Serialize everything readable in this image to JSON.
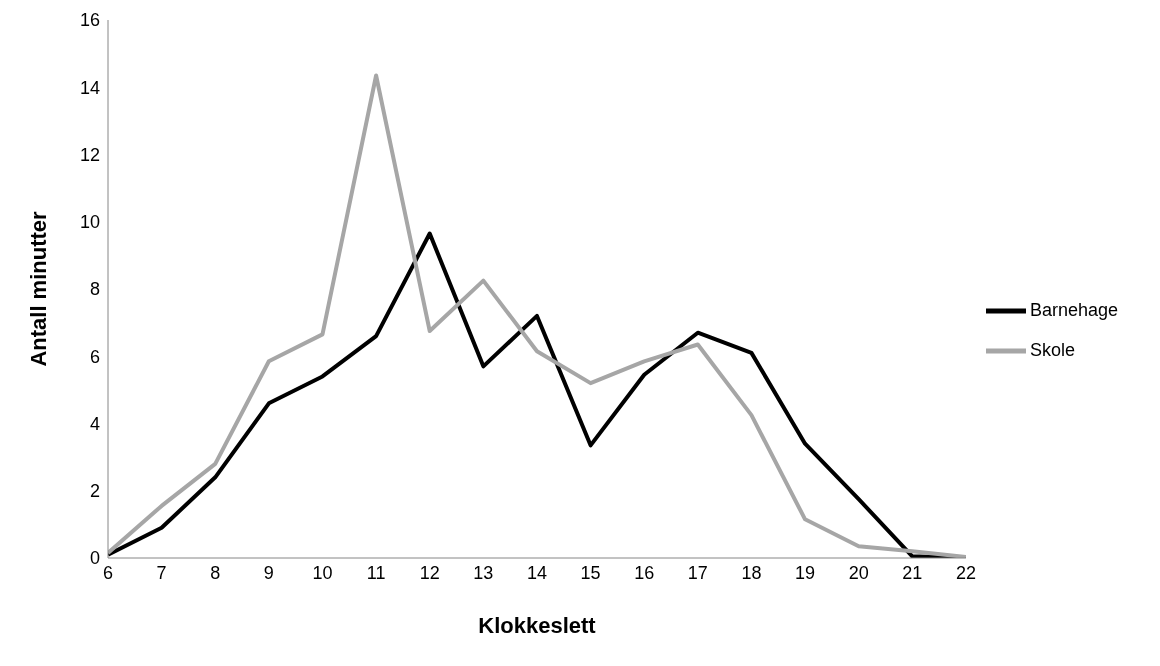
{
  "chart_data": {
    "type": "line",
    "xlabel": "Klokkeslett",
    "ylabel": "Antall minutter",
    "x": [
      6,
      7,
      8,
      9,
      10,
      11,
      12,
      13,
      14,
      15,
      16,
      17,
      18,
      19,
      20,
      21,
      22
    ],
    "series": [
      {
        "name": "Barnehage",
        "color": "#000000",
        "values": [
          0.1,
          0.9,
          2.4,
          4.6,
          5.4,
          6.6,
          9.65,
          5.7,
          7.2,
          3.35,
          5.45,
          6.7,
          6.1,
          3.4,
          1.75,
          0.05,
          0
        ]
      },
      {
        "name": "Skole",
        "color": "#a6a6a6",
        "values": [
          0.15,
          1.55,
          2.8,
          5.85,
          6.65,
          14.35,
          6.75,
          8.25,
          6.15,
          5.2,
          5.85,
          6.35,
          4.25,
          1.15,
          0.35,
          0.2,
          0.03
        ]
      }
    ],
    "xlim": [
      6,
      22
    ],
    "xticks": [
      6,
      7,
      8,
      9,
      10,
      11,
      12,
      13,
      14,
      15,
      16,
      17,
      18,
      19,
      20,
      21,
      22
    ],
    "ylim": [
      0,
      16
    ],
    "yticks": [
      0,
      2,
      4,
      6,
      8,
      10,
      12,
      14,
      16
    ],
    "grid": false,
    "legend": "right",
    "marker": "none",
    "line_style": "solid"
  }
}
